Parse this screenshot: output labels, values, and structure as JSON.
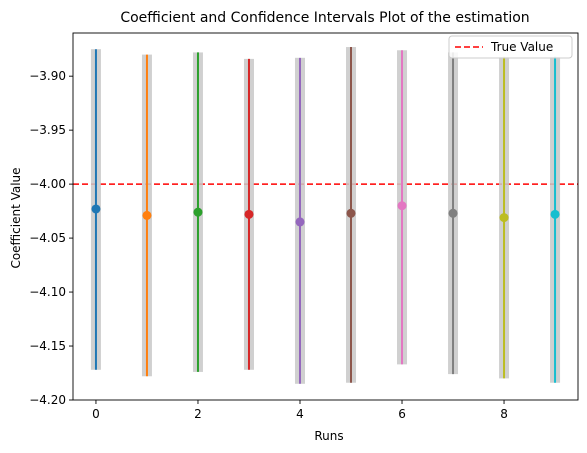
{
  "chart_data": {
    "type": "errorbar",
    "title": "Coefficient and Confidence Intervals Plot of the estimation",
    "xlabel": "Runs",
    "ylabel": "Coefficient Value",
    "xlim": [
      -0.45,
      9.45
    ],
    "ylim": [
      -4.2,
      -3.86
    ],
    "x_ticks": [
      0,
      2,
      4,
      6,
      8
    ],
    "y_ticks": [
      -3.9,
      -3.95,
      -4.0,
      -4.05,
      -4.1,
      -4.15,
      -4.2
    ],
    "grid": false,
    "legend_position": "top-right",
    "reference_line": {
      "label": "True Value",
      "value": -4.0,
      "color": "#ff0000",
      "style": "dashed"
    },
    "points": [
      {
        "x": 0,
        "y": -4.023,
        "lower": -4.172,
        "upper": -3.875,
        "color": "#1f77b4"
      },
      {
        "x": 1,
        "y": -4.029,
        "lower": -4.178,
        "upper": -3.88,
        "color": "#ff7f0e"
      },
      {
        "x": 2,
        "y": -4.026,
        "lower": -4.174,
        "upper": -3.878,
        "color": "#2ca02c"
      },
      {
        "x": 3,
        "y": -4.028,
        "lower": -4.172,
        "upper": -3.884,
        "color": "#d62728"
      },
      {
        "x": 4,
        "y": -4.035,
        "lower": -4.185,
        "upper": -3.883,
        "color": "#9467bd"
      },
      {
        "x": 5,
        "y": -4.027,
        "lower": -4.184,
        "upper": -3.873,
        "color": "#8c564b"
      },
      {
        "x": 6,
        "y": -4.02,
        "lower": -4.167,
        "upper": -3.876,
        "color": "#e377c2"
      },
      {
        "x": 7,
        "y": -4.027,
        "lower": -4.176,
        "upper": -3.878,
        "color": "#7f7f7f"
      },
      {
        "x": 8,
        "y": -4.031,
        "lower": -4.18,
        "upper": -3.882,
        "color": "#bcbd22"
      },
      {
        "x": 9,
        "y": -4.028,
        "lower": -4.184,
        "upper": -3.882,
        "color": "#17becf"
      }
    ],
    "ci_band_color": "#c8c8c8"
  }
}
